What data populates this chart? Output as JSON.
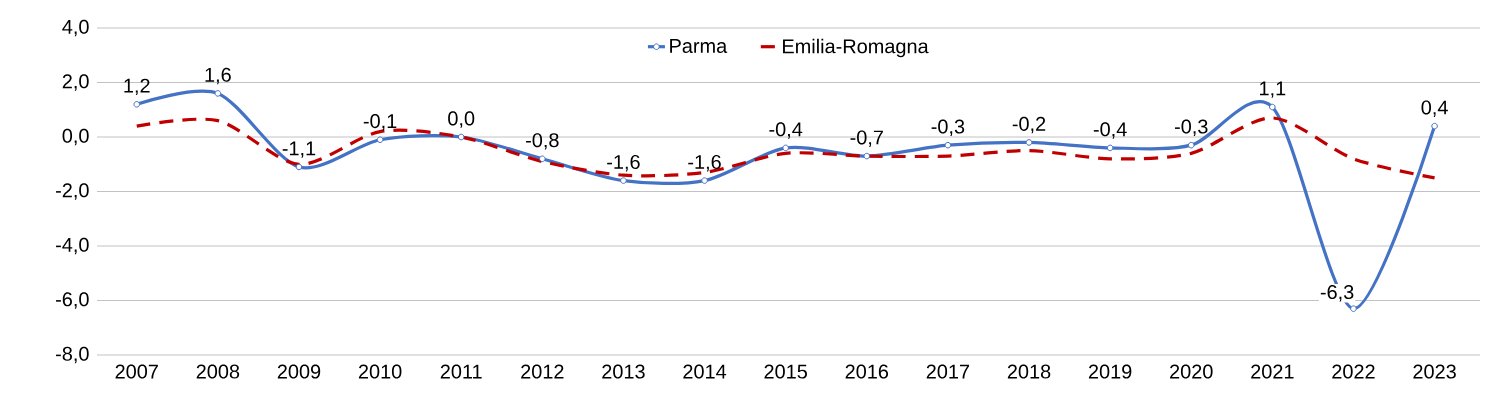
{
  "chart_data": {
    "type": "line",
    "categories": [
      "2007",
      "2008",
      "2009",
      "2010",
      "2011",
      "2012",
      "2013",
      "2014",
      "2015",
      "2016",
      "2017",
      "2018",
      "2019",
      "2020",
      "2021",
      "2022",
      "2023"
    ],
    "series": [
      {
        "name": "Parma",
        "color": "#4472c4",
        "marker": "circle",
        "line_style": "solid",
        "values": [
          1.2,
          1.6,
          -1.1,
          -0.1,
          0.0,
          -0.8,
          -1.6,
          -1.6,
          -0.4,
          -0.7,
          -0.3,
          -0.2,
          -0.4,
          -0.3,
          1.1,
          -6.3,
          0.4
        ],
        "value_labels": [
          "1,2",
          "1,6",
          "-1,1",
          "-0,1",
          "0,0",
          "-0,8",
          "-1,6",
          "-1,6",
          "-0,4",
          "-0,7",
          "-0,3",
          "-0,2",
          "-0,4",
          "-0,3",
          "1,1",
          "-6,3",
          "0,4"
        ]
      },
      {
        "name": "Emilia-Romagna",
        "color": "#c00000",
        "marker": "none",
        "line_style": "dashed",
        "values": [
          0.4,
          0.6,
          -1.0,
          0.2,
          0.0,
          -0.9,
          -1.4,
          -1.3,
          -0.6,
          -0.7,
          -0.7,
          -0.5,
          -0.8,
          -0.6,
          0.7,
          -0.8,
          -1.5
        ]
      }
    ],
    "ylim": [
      -8,
      4
    ],
    "yticks": [
      {
        "value": -8,
        "label": "-8,0"
      },
      {
        "value": -6,
        "label": "-6,0"
      },
      {
        "value": -4,
        "label": "-4,0"
      },
      {
        "value": -2,
        "label": "-2,0"
      },
      {
        "value": 0,
        "label": "0,0"
      },
      {
        "value": 2,
        "label": "2,0"
      },
      {
        "value": 4,
        "label": "4,0"
      }
    ],
    "grid": "y",
    "legend": "top"
  }
}
